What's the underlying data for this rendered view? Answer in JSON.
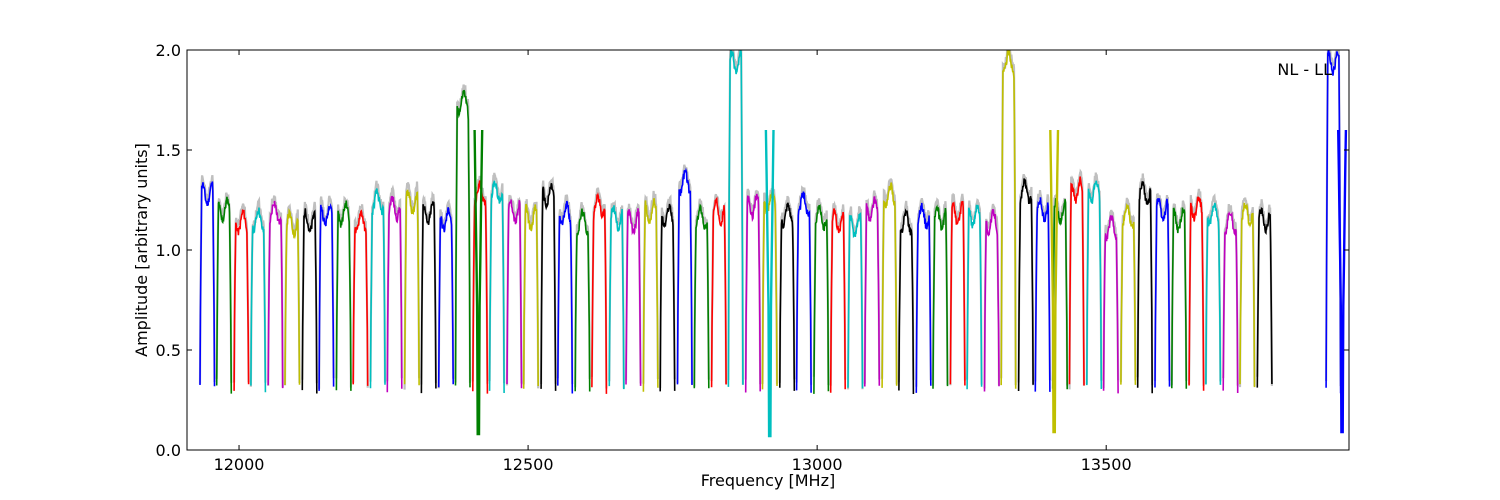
{
  "chart_data": {
    "type": "line",
    "title": "",
    "annotation": "NL - LL",
    "xlabel": "Frequency [MHz]",
    "ylabel": "Amplitude [arbitrary units]",
    "xlim": [
      11910,
      13920
    ],
    "ylim": [
      0.0,
      2.0
    ],
    "xticks": [
      12000,
      12500,
      13000,
      13500
    ],
    "xtick_labels": [
      "12000",
      "12500",
      "13000",
      "13500"
    ],
    "yticks": [
      0.0,
      0.5,
      1.0,
      1.5,
      2.0
    ],
    "ytick_labels": [
      "0.0",
      "0.5",
      "1.0",
      "1.5",
      "2.0"
    ],
    "grid": false,
    "legend": "none",
    "reference_color": "#bfbfbf",
    "channel_spacing_mhz": 29.5,
    "channels": [
      {
        "center": 11945,
        "peak": 1.34,
        "color": "#0000ff"
      },
      {
        "center": 11974,
        "peak": 1.26,
        "color": "#008000"
      },
      {
        "center": 12004,
        "peak": 1.2,
        "color": "#ff0000"
      },
      {
        "center": 12033,
        "peak": 1.21,
        "color": "#00bfbf"
      },
      {
        "center": 12063,
        "peak": 1.25,
        "color": "#bf00bf"
      },
      {
        "center": 12092,
        "peak": 1.19,
        "color": "#bfbf00"
      },
      {
        "center": 12122,
        "peak": 1.2,
        "color": "#000000"
      },
      {
        "center": 12151,
        "peak": 1.24,
        "color": "#0000ff"
      },
      {
        "center": 12181,
        "peak": 1.24,
        "color": "#008000"
      },
      {
        "center": 12210,
        "peak": 1.2,
        "color": "#ff0000"
      },
      {
        "center": 12240,
        "peak": 1.3,
        "color": "#00bfbf"
      },
      {
        "center": 12269,
        "peak": 1.27,
        "color": "#bf00bf"
      },
      {
        "center": 12299,
        "peak": 1.3,
        "color": "#bfbf00"
      },
      {
        "center": 12328,
        "peak": 1.24,
        "color": "#000000"
      },
      {
        "center": 12358,
        "peak": 1.21,
        "color": "#0000ff"
      },
      {
        "center": 12387,
        "peak": 1.8,
        "color": "#008000"
      },
      {
        "center": 12417,
        "peak": 1.34,
        "color": "#ff0000"
      },
      {
        "center": 12446,
        "peak": 1.35,
        "color": "#00bfbf"
      },
      {
        "center": 12476,
        "peak": 1.25,
        "color": "#bf00bf"
      },
      {
        "center": 12505,
        "peak": 1.22,
        "color": "#bfbf00"
      },
      {
        "center": 12535,
        "peak": 1.33,
        "color": "#000000"
      },
      {
        "center": 12564,
        "peak": 1.24,
        "color": "#0000ff"
      },
      {
        "center": 12594,
        "peak": 1.2,
        "color": "#008000"
      },
      {
        "center": 12623,
        "peak": 1.28,
        "color": "#ff0000"
      },
      {
        "center": 12653,
        "peak": 1.22,
        "color": "#00bfbf"
      },
      {
        "center": 12682,
        "peak": 1.2,
        "color": "#bf00bf"
      },
      {
        "center": 12712,
        "peak": 1.25,
        "color": "#bfbf00"
      },
      {
        "center": 12741,
        "peak": 1.23,
        "color": "#000000"
      },
      {
        "center": 12771,
        "peak": 1.4,
        "color": "#0000ff"
      },
      {
        "center": 12800,
        "peak": 1.22,
        "color": "#008000"
      },
      {
        "center": 12830,
        "peak": 1.25,
        "color": "#ff0000"
      },
      {
        "center": 12859,
        "peak": 2.0,
        "color": "#00bfbf"
      },
      {
        "center": 12889,
        "peak": 1.28,
        "color": "#bf00bf"
      },
      {
        "center": 12918,
        "peak": 1.3,
        "color": "#bfbf00"
      },
      {
        "center": 12948,
        "peak": 1.24,
        "color": "#000000"
      },
      {
        "center": 12977,
        "peak": 1.29,
        "color": "#0000ff"
      },
      {
        "center": 13007,
        "peak": 1.22,
        "color": "#008000"
      },
      {
        "center": 13036,
        "peak": 1.2,
        "color": "#ff0000"
      },
      {
        "center": 13066,
        "peak": 1.18,
        "color": "#00bfbf"
      },
      {
        "center": 13095,
        "peak": 1.26,
        "color": "#bf00bf"
      },
      {
        "center": 13125,
        "peak": 1.33,
        "color": "#bfbf00"
      },
      {
        "center": 13154,
        "peak": 1.2,
        "color": "#000000"
      },
      {
        "center": 13184,
        "peak": 1.23,
        "color": "#0000ff"
      },
      {
        "center": 13213,
        "peak": 1.22,
        "color": "#008000"
      },
      {
        "center": 13243,
        "peak": 1.24,
        "color": "#ff0000"
      },
      {
        "center": 13272,
        "peak": 1.23,
        "color": "#00bfbf"
      },
      {
        "center": 13302,
        "peak": 1.2,
        "color": "#bf00bf"
      },
      {
        "center": 13331,
        "peak": 2.0,
        "color": "#bfbf00"
      },
      {
        "center": 13361,
        "peak": 1.35,
        "color": "#000000"
      },
      {
        "center": 13390,
        "peak": 1.26,
        "color": "#0000ff"
      },
      {
        "center": 13420,
        "peak": 1.25,
        "color": "#008000"
      },
      {
        "center": 13449,
        "peak": 1.36,
        "color": "#ff0000"
      },
      {
        "center": 13479,
        "peak": 1.35,
        "color": "#00bfbf"
      },
      {
        "center": 13508,
        "peak": 1.17,
        "color": "#bf00bf"
      },
      {
        "center": 13538,
        "peak": 1.23,
        "color": "#bfbf00"
      },
      {
        "center": 13567,
        "peak": 1.34,
        "color": "#000000"
      },
      {
        "center": 13597,
        "peak": 1.26,
        "color": "#0000ff"
      },
      {
        "center": 13626,
        "peak": 1.21,
        "color": "#008000"
      },
      {
        "center": 13656,
        "peak": 1.27,
        "color": "#ff0000"
      },
      {
        "center": 13685,
        "peak": 1.24,
        "color": "#00bfbf"
      },
      {
        "center": 13715,
        "peak": 1.2,
        "color": "#bf00bf"
      },
      {
        "center": 13744,
        "peak": 1.24,
        "color": "#bfbf00"
      },
      {
        "center": 13774,
        "peak": 1.21,
        "color": "#000000"
      },
      {
        "center": 13893,
        "peak": 2.0,
        "color": "#0000ff"
      }
    ],
    "deep_notches": [
      {
        "x": 12414,
        "min": 0.08,
        "color": "#008000"
      },
      {
        "x": 12918,
        "min": 0.07,
        "color": "#00bfbf"
      },
      {
        "x": 13410,
        "min": 0.09,
        "color": "#bfbf00"
      },
      {
        "x": 13908,
        "min": 0.09,
        "color": "#0000ff"
      }
    ]
  }
}
